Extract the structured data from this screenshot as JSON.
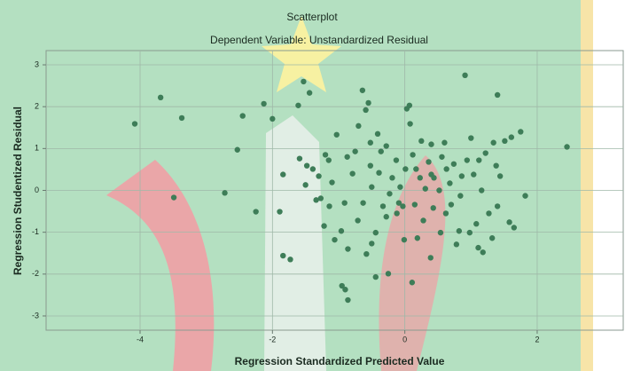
{
  "chart_data": {
    "type": "scatter",
    "title": "Scatterplot",
    "subtitle": "Dependent Variable: Unstandardized Residual",
    "x_label": "Regression Standardized Predicted Value",
    "y_label": "Regression Studentized Residual",
    "color": "#3e7d58",
    "grid": true,
    "xlim": [
      -5.42,
      3.3
    ],
    "ylim": [
      -3.34,
      3.34
    ],
    "xticks": [
      -4,
      -2,
      0,
      2
    ],
    "yticks": [
      -3,
      -2,
      -1,
      0,
      1,
      2,
      3
    ],
    "x": [
      -4.08,
      -3.69,
      -3.37,
      -3.49,
      -2.72,
      -2.53,
      -2.45,
      -2.25,
      -2.13,
      -2.0,
      -1.84,
      -1.89,
      -1.84,
      -1.73,
      -1.61,
      -1.53,
      -1.44,
      -1.59,
      -1.48,
      -1.39,
      -1.22,
      -1.3,
      -1.27,
      -1.15,
      -1.1,
      -1.03,
      -0.96,
      -0.91,
      -0.86,
      -0.79,
      -0.75,
      -0.7,
      -0.64,
      -0.59,
      -0.55,
      -0.52,
      -0.5,
      -0.44,
      -0.41,
      -0.36,
      -0.33,
      -0.28,
      -0.95,
      -0.9,
      -0.86,
      -0.44,
      -0.25,
      -0.58,
      -0.19,
      -0.13,
      -0.09,
      -0.03,
      0.03,
      0.07,
      0.08,
      0.12,
      0.17,
      0.23,
      0.25,
      0.31,
      0.36,
      0.4,
      0.43,
      0.44,
      0.52,
      0.56,
      0.63,
      0.7,
      0.74,
      0.78,
      0.82,
      0.84,
      0.91,
      0.94,
      1.0,
      1.04,
      1.08,
      1.11,
      1.16,
      1.22,
      1.27,
      1.34,
      1.4,
      1.44,
      1.51,
      1.58,
      1.65,
      1.75,
      1.82,
      2.45,
      1.61,
      0.11,
      0.39,
      0.54,
      0.19,
      0.62,
      -0.12,
      -0.23,
      -0.63,
      -0.71,
      -1.06,
      -1.14,
      -1.34,
      -1.5,
      -1.2,
      -0.87,
      -0.39,
      -0.07,
      0.15,
      0.28,
      0.98,
      1.18,
      1.32,
      1.4,
      0.86,
      1.12,
      1.38,
      0.68,
      0.01,
      -0.28,
      -0.52,
      0.4,
      0.6,
      -0.5,
      -0.01
    ],
    "y": [
      1.59,
      2.22,
      1.73,
      -0.17,
      -0.06,
      0.97,
      1.78,
      -0.51,
      2.07,
      1.71,
      0.38,
      -0.51,
      -1.56,
      -1.65,
      2.03,
      2.6,
      2.33,
      0.76,
      0.59,
      0.51,
      -0.85,
      0.34,
      -0.19,
      0.72,
      0.19,
      1.33,
      -0.97,
      -0.3,
      -1.4,
      0.4,
      0.93,
      1.54,
      2.39,
      1.92,
      2.09,
      0.59,
      0.08,
      -1.01,
      1.35,
      0.93,
      -0.38,
      -0.63,
      -2.28,
      -2.37,
      -2.62,
      -2.07,
      -1.99,
      -1.52,
      0.3,
      0.72,
      -0.3,
      -0.38,
      1.95,
      2.03,
      1.59,
      0.85,
      0.51,
      0.3,
      1.18,
      0.04,
      0.68,
      1.1,
      -0.42,
      0.3,
      0.0,
      0.8,
      0.51,
      -0.34,
      0.63,
      -1.29,
      -0.97,
      -0.13,
      2.75,
      0.72,
      1.25,
      0.38,
      -0.8,
      -1.37,
      0.0,
      0.89,
      -0.55,
      1.14,
      2.28,
      0.34,
      1.18,
      -0.76,
      -0.89,
      1.4,
      -0.13,
      1.04,
      1.27,
      -2.2,
      -1.61,
      -1.01,
      -1.14,
      -0.55,
      -0.55,
      -0.08,
      -0.3,
      -0.72,
      -1.18,
      -0.38,
      -0.23,
      0.13,
      0.85,
      0.8,
      0.42,
      0.08,
      -0.34,
      -0.72,
      -1.01,
      -1.48,
      -1.14,
      -0.38,
      0.34,
      0.72,
      0.59,
      0.17,
      0.51,
      1.06,
      1.14,
      0.38,
      1.14,
      -1.27,
      -1.18
    ]
  }
}
